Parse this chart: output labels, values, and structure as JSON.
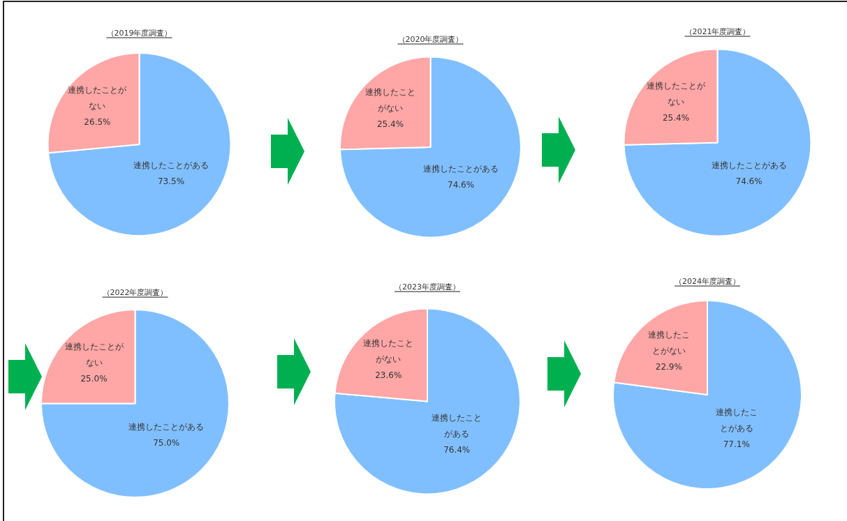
{
  "chart_data": [
    {
      "type": "pie",
      "title": "（2019年度調査）",
      "categories": [
        "連携したことがある",
        "連携したことがない"
      ],
      "values": [
        73.5,
        26.5
      ],
      "value_labels": [
        "73.5%",
        "26.5%"
      ],
      "colors": [
        "#80bfff",
        "#ffa6a6"
      ]
    },
    {
      "type": "pie",
      "title": "（2020年度調査）",
      "categories": [
        "連携したことがある",
        "連携したことがない"
      ],
      "values": [
        74.6,
        25.4
      ],
      "value_labels": [
        "74.6%",
        "25.4%"
      ],
      "colors": [
        "#80bfff",
        "#ffa6a6"
      ]
    },
    {
      "type": "pie",
      "title": "（2021年度調査）",
      "categories": [
        "連携したことがある",
        "連携したことがない"
      ],
      "values": [
        74.6,
        25.4
      ],
      "value_labels": [
        "74.6%",
        "25.4%"
      ],
      "colors": [
        "#80bfff",
        "#ffa6a6"
      ]
    },
    {
      "type": "pie",
      "title": "（2022年度調査）",
      "categories": [
        "連携したことがある",
        "連携したことがない"
      ],
      "values": [
        75.0,
        25.0
      ],
      "value_labels": [
        "75.0%",
        "25.0%"
      ],
      "colors": [
        "#80bfff",
        "#ffa6a6"
      ]
    },
    {
      "type": "pie",
      "title": "（2023年度調査）",
      "categories": [
        "連携したことがある",
        "連携したことがない"
      ],
      "values": [
        76.4,
        23.6
      ],
      "value_labels": [
        "76.4%",
        "23.6%"
      ],
      "colors": [
        "#80bfff",
        "#ffa6a6"
      ]
    },
    {
      "type": "pie",
      "title": "（2024年度調査）",
      "categories": [
        "連携したことがある",
        "連携したことがない"
      ],
      "values": [
        77.1,
        22.9
      ],
      "value_labels": [
        "77.1%",
        "22.9%"
      ],
      "colors": [
        "#80bfff",
        "#ffa6a6"
      ]
    }
  ]
}
